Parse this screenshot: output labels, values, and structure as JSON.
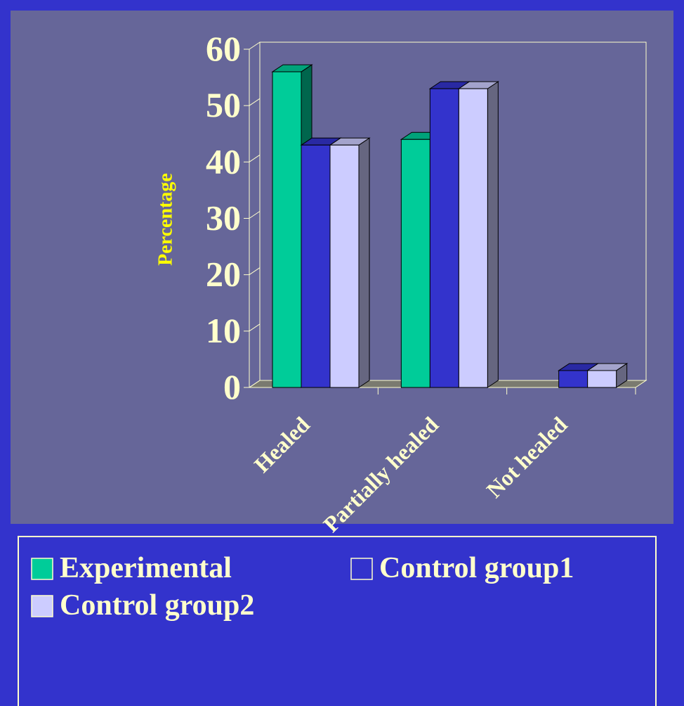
{
  "chart_data": {
    "type": "bar3d",
    "y_label": "Percentage",
    "categories": [
      "Healed",
      "Partially healed",
      "Not healed"
    ],
    "series": [
      {
        "name": "Experimental",
        "color": "#00cc99",
        "values": [
          56,
          44,
          0
        ]
      },
      {
        "name": "Control group1",
        "color": "#3333cc",
        "values": [
          43,
          53,
          3
        ]
      },
      {
        "name": "Control group2",
        "color": "#ccccff",
        "values": [
          43,
          53,
          3
        ]
      }
    ],
    "ylim": [
      0,
      60
    ],
    "yticks": [
      0,
      10,
      20,
      30,
      40,
      50,
      60
    ]
  }
}
